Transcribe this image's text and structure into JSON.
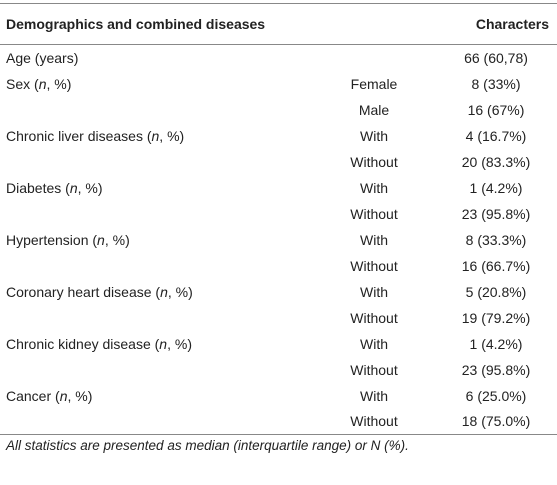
{
  "table": {
    "header": [
      "Demographics and combined diseases",
      "Characters"
    ],
    "rows": [
      [
        [
          "Age (years)"
        ],
        null,
        "66 (60,78)"
      ],
      [
        [
          "Sex (",
          "n",
          ", %)"
        ],
        "Female",
        "8 (33%)"
      ],
      [
        null,
        "Male",
        "16 (67%)"
      ],
      [
        [
          "Chronic liver diseases (",
          "n",
          ", %)"
        ],
        "With",
        "4 (16.7%)"
      ],
      [
        null,
        "Without",
        "20 (83.3%)"
      ],
      [
        [
          "Diabetes (",
          "n",
          ", %)"
        ],
        "With",
        "1 (4.2%)"
      ],
      [
        null,
        "Without",
        "23 (95.8%)"
      ],
      [
        [
          "Hypertension (",
          "n",
          ", %)"
        ],
        "With",
        "8 (33.3%)"
      ],
      [
        null,
        "Without",
        "16 (66.7%)"
      ],
      [
        [
          "Coronary heart disease (",
          "n",
          ", %)"
        ],
        "With",
        "5 (20.8%)"
      ],
      [
        null,
        "Without",
        "19 (79.2%)"
      ],
      [
        [
          "Chronic kidney disease (",
          "n",
          ", %)"
        ],
        "With",
        "1 (4.2%)"
      ],
      [
        null,
        "Without",
        "23 (95.8%)"
      ],
      [
        [
          "Cancer (",
          "n",
          ", %)"
        ],
        "With",
        "6 (25.0%)"
      ],
      [
        null,
        "Without",
        "18 (75.0%)"
      ]
    ],
    "footnote": "All statistics are presented as median (interquartile range) or N (%)."
  }
}
